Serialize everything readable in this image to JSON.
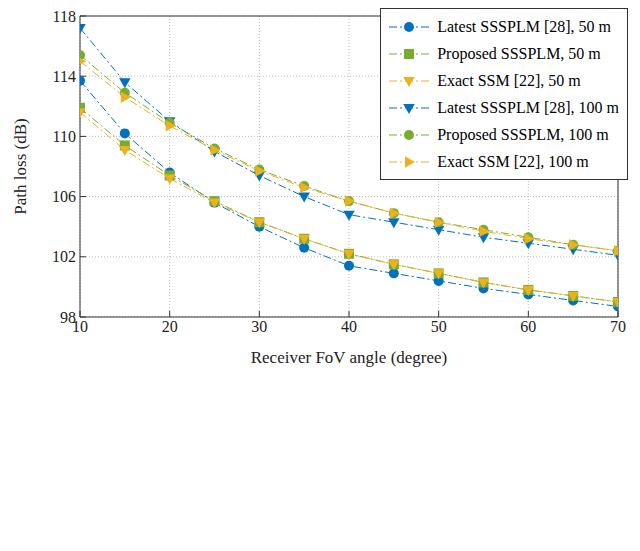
{
  "chart_data": {
    "type": "line",
    "x_label": "Receiver FoV angle (degree)",
    "y_label": "Path loss (dB)",
    "x": [
      10,
      15,
      20,
      25,
      30,
      35,
      40,
      45,
      50,
      55,
      60,
      65,
      70
    ],
    "xlim": [
      10,
      70
    ],
    "xticks": [
      10,
      20,
      30,
      40,
      50,
      60,
      70
    ],
    "ylim": [
      98,
      118
    ],
    "yticks": [
      98,
      102,
      106,
      110,
      114,
      118
    ],
    "grid": true,
    "legend": "top-right",
    "series": [
      {
        "name": "Latest SSSPLM [28], 50 m",
        "color": "#0072BD",
        "marker": "circle",
        "line_style": "dashdot",
        "values": [
          113.7,
          110.2,
          107.6,
          105.6,
          104.0,
          102.6,
          101.4,
          100.9,
          100.4,
          99.9,
          99.5,
          99.1,
          98.7
        ]
      },
      {
        "name": "Proposed SSSPLM, 50 m",
        "color": "#77AC30",
        "marker": "square",
        "line_style": "dashdot",
        "values": [
          111.9,
          109.4,
          107.4,
          105.7,
          104.3,
          103.2,
          102.2,
          101.5,
          100.9,
          100.3,
          99.8,
          99.4,
          99.0
        ]
      },
      {
        "name": "Exact SSM [22], 50 m",
        "color": "#EDB120",
        "marker": "triangle-down",
        "line_style": "dashdot",
        "values": [
          111.6,
          109.1,
          107.2,
          105.6,
          104.3,
          103.2,
          102.2,
          101.5,
          100.9,
          100.3,
          99.8,
          99.4,
          99.0
        ]
      },
      {
        "name": "Latest SSSPLM [28], 100 m",
        "color": "#0072BD",
        "marker": "triangle-down",
        "line_style": "dashdot",
        "values": [
          117.2,
          113.6,
          111.0,
          109.0,
          107.4,
          106.0,
          104.8,
          104.3,
          103.8,
          103.3,
          102.9,
          102.5,
          102.1
        ]
      },
      {
        "name": "Proposed SSSPLM, 100 m",
        "color": "#77AC30",
        "marker": "circle",
        "line_style": "dashdot",
        "values": [
          115.4,
          112.9,
          110.9,
          109.2,
          107.8,
          106.7,
          105.7,
          104.9,
          104.3,
          103.8,
          103.3,
          102.8,
          102.4
        ]
      },
      {
        "name": "Exact SSM [22], 100 m",
        "color": "#EDB120",
        "marker": "triangle-right",
        "line_style": "dashdot",
        "values": [
          115.0,
          112.6,
          110.7,
          109.1,
          107.7,
          106.6,
          105.7,
          104.9,
          104.3,
          103.7,
          103.2,
          102.8,
          102.4
        ]
      }
    ]
  }
}
